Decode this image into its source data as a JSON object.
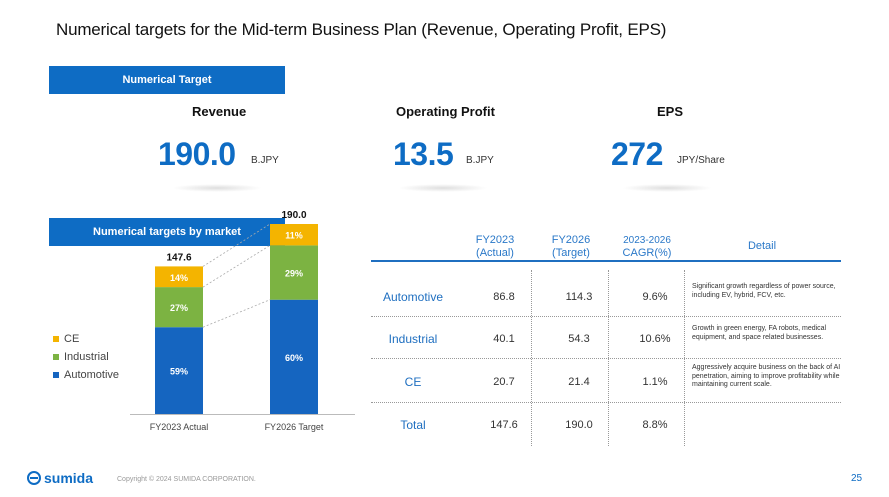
{
  "title": "Numerical targets for the Mid-term Business Plan (Revenue, Operating Profit, EPS)",
  "section1_label": "Numerical Target",
  "section2_label": "Numerical targets by market",
  "kpis": [
    {
      "label": "Revenue",
      "value": "190.0",
      "unit": "B.JPY"
    },
    {
      "label": "Operating Profit",
      "value": "13.5",
      "unit": "B.JPY"
    },
    {
      "label": "EPS",
      "value": "272",
      "unit": "JPY/Share"
    }
  ],
  "chart_data": {
    "type": "bar",
    "stacked": true,
    "categories": [
      "FY2023 Actual",
      "FY2026 Target"
    ],
    "totals": [
      147.6,
      190.0
    ],
    "total_labels": [
      "147.6",
      "190.0"
    ],
    "series": [
      {
        "name": "Automotive",
        "values": [
          86.8,
          114.3
        ],
        "share_labels": [
          "59%",
          "60%"
        ],
        "color": "#1565c0"
      },
      {
        "name": "Industrial",
        "values": [
          40.1,
          54.3
        ],
        "share_labels": [
          "27%",
          "29%"
        ],
        "color": "#7cb342"
      },
      {
        "name": "CE",
        "values": [
          20.7,
          21.4
        ],
        "share_labels": [
          "14%",
          "11%"
        ],
        "color": "#f4b400"
      }
    ],
    "legend": [
      "CE",
      "Industrial",
      "Automotive"
    ],
    "legend_position": "left"
  },
  "table": {
    "headers": {
      "fy2023": [
        "FY2023",
        "(Actual)"
      ],
      "fy2026": [
        "FY2026",
        "(Target)"
      ],
      "cagr": [
        "2023-2026",
        "CAGR(%)"
      ],
      "detail": "Detail"
    },
    "rows": [
      {
        "market": "Automotive",
        "fy2023": "86.8",
        "fy2026": "114.3",
        "cagr": "9.6%",
        "detail": "Significant growth regardless of power source, including EV, hybrid, FCV, etc."
      },
      {
        "market": "Industrial",
        "fy2023": "40.1",
        "fy2026": "54.3",
        "cagr": "10.6%",
        "detail": "Growth in green energy, FA robots, medical equipment, and space related businesses."
      },
      {
        "market": "CE",
        "fy2023": "20.7",
        "fy2026": "21.4",
        "cagr": "1.1%",
        "detail": "Aggressively acquire business on the back of AI penetration, aiming to improve profitability while maintaining current scale."
      },
      {
        "market": "Total",
        "fy2023": "147.6",
        "fy2026": "190.0",
        "cagr": "8.8%",
        "detail": ""
      }
    ]
  },
  "footer": {
    "logo_text": "sumida",
    "copyright": "Copyright © 2024 SUMIDA CORPORATION.",
    "page_number": "25"
  }
}
